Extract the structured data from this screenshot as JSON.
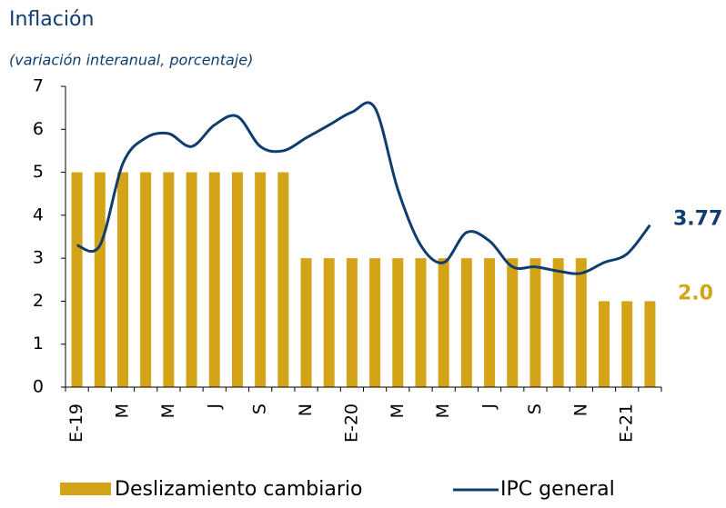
{
  "chart_data": {
    "type": "bar-line",
    "title": "Inflación",
    "subtitle": "(variación interanual, porcentaje)",
    "categories": [
      "E-19",
      null,
      "M",
      null,
      "M",
      null,
      "J",
      null,
      "S",
      null,
      "N",
      null,
      "E-20",
      null,
      "M",
      null,
      "M",
      null,
      "J",
      null,
      "S",
      null,
      "N",
      null,
      "E-21",
      null
    ],
    "series": [
      {
        "name": "Deslizamiento cambiario",
        "type": "bar",
        "color": "#d4a418",
        "values": [
          5,
          5,
          5,
          5,
          5,
          5,
          5,
          5,
          5,
          5,
          3,
          3,
          3,
          3,
          3,
          3,
          3,
          3,
          3,
          3,
          3,
          3,
          3,
          2,
          2,
          2
        ],
        "value_labels": [
          null,
          null,
          null,
          null,
          null,
          null,
          null,
          null,
          null,
          null,
          null,
          null,
          null,
          null,
          null,
          null,
          null,
          null,
          null,
          null,
          null,
          null,
          null,
          null,
          null,
          "2.0"
        ]
      },
      {
        "name": "IPC general",
        "type": "line",
        "color": "#0e3d6e",
        "values": [
          3.3,
          3.3,
          5.2,
          5.8,
          5.9,
          5.6,
          6.1,
          6.3,
          5.6,
          5.5,
          5.8,
          6.1,
          6.4,
          6.5,
          4.6,
          3.3,
          2.9,
          3.6,
          3.4,
          2.8,
          2.8,
          2.7,
          2.65,
          2.9,
          3.1,
          3.77
        ],
        "value_labels": [
          null,
          null,
          null,
          null,
          null,
          null,
          null,
          null,
          null,
          null,
          null,
          null,
          null,
          null,
          null,
          null,
          null,
          null,
          null,
          null,
          null,
          null,
          null,
          null,
          null,
          "3.77"
        ]
      }
    ],
    "ylim": [
      0,
      7
    ],
    "yticks": [
      0,
      1,
      2,
      3,
      4,
      5,
      6,
      7
    ],
    "grid": false,
    "legend": "bottom"
  }
}
